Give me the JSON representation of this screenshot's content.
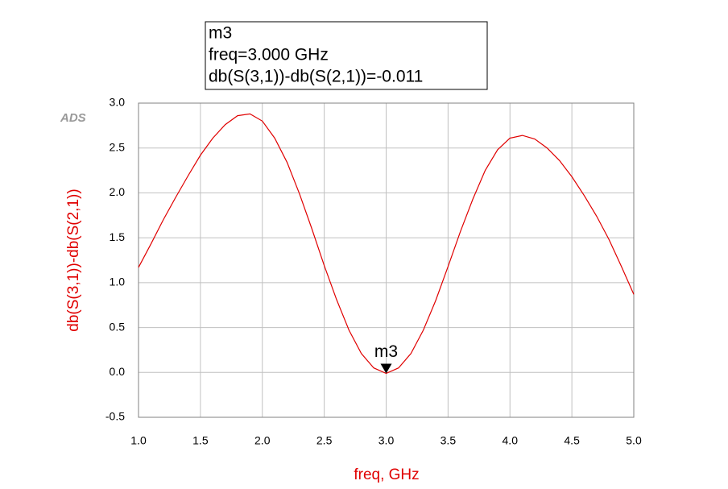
{
  "chart_data": {
    "type": "line",
    "watermark": "ADS",
    "xlabel": "freq, GHz",
    "ylabel": "db(S(3,1))-db(S(2,1))",
    "x": [
      1.0,
      1.1,
      1.2,
      1.3,
      1.4,
      1.5,
      1.6,
      1.7,
      1.8,
      1.9,
      2.0,
      2.1,
      2.2,
      2.3,
      2.4,
      2.5,
      2.6,
      2.7,
      2.8,
      2.9,
      3.0,
      3.1,
      3.2,
      3.3,
      3.4,
      3.5,
      3.6,
      3.7,
      3.8,
      3.9,
      4.0,
      4.1,
      4.2,
      4.3,
      4.4,
      4.5,
      4.6,
      4.7,
      4.8,
      4.9,
      5.0
    ],
    "series": [
      {
        "name": "db(S(3,1))-db(S(2,1))",
        "color": "#e00000",
        "values": [
          1.17,
          1.43,
          1.7,
          1.95,
          2.19,
          2.42,
          2.61,
          2.76,
          2.86,
          2.88,
          2.8,
          2.61,
          2.34,
          1.99,
          1.6,
          1.19,
          0.81,
          0.47,
          0.21,
          0.05,
          -0.011,
          0.05,
          0.21,
          0.47,
          0.8,
          1.18,
          1.57,
          1.93,
          2.25,
          2.48,
          2.61,
          2.64,
          2.6,
          2.5,
          2.36,
          2.18,
          1.97,
          1.74,
          1.48,
          1.18,
          0.87
        ]
      }
    ],
    "xlim": [
      1.0,
      5.0
    ],
    "ylim": [
      -0.5,
      3.0
    ],
    "xticks": [
      {
        "value": 1,
        "label": "1.0"
      },
      1.5,
      {
        "value": 2,
        "label": "2.0"
      },
      2.5,
      {
        "value": 3,
        "label": "3.0"
      },
      3.5,
      {
        "value": 4,
        "label": "4.0"
      },
      4.5,
      {
        "value": 5,
        "label": "5.0"
      }
    ],
    "yticks": [
      -0.5,
      {
        "value": 0,
        "label": "0.0"
      },
      0.5,
      {
        "value": 1,
        "label": "1.0"
      },
      1.5,
      {
        "value": 2,
        "label": "2.0"
      },
      2.5,
      {
        "value": 3,
        "label": "3.0"
      }
    ],
    "grid": true,
    "marker": {
      "name": "m3",
      "x": 3.0,
      "y": -0.011,
      "readout": [
        "m3",
        "freq=3.000 GHz",
        "db(S(3,1))-db(S(2,1))=-0.011"
      ]
    }
  }
}
